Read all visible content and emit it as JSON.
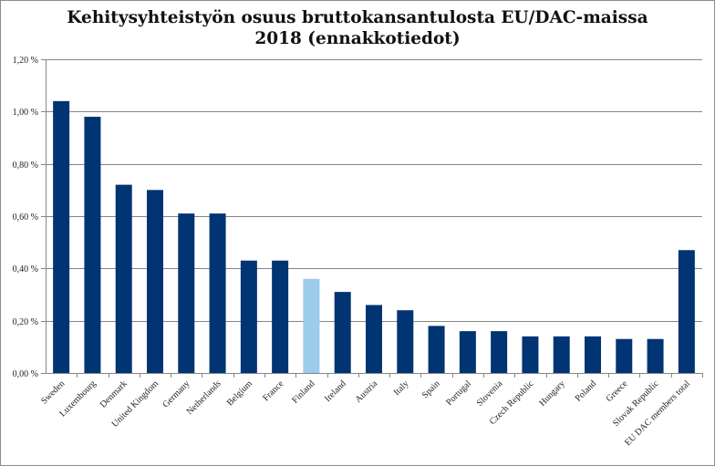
{
  "chart_data": {
    "type": "bar",
    "title_lines": [
      "Kehitysyhteistyön osuus bruttokansantulosta EU/DAC-maissa",
      "2018 (ennakkotiedot)"
    ],
    "categories": [
      "Sweden",
      "Luxembourg",
      "Denmark",
      "United Kingdom",
      "Germany",
      "Netherlands",
      "Belgium",
      "France",
      "Finland",
      "Ireland",
      "Austria",
      "Italy",
      "Spain",
      "Portugal",
      "Slovenia",
      "Czech Republic",
      "Hungary",
      "Poland",
      "Greece",
      "Slovak Republic",
      "EU DAC members total"
    ],
    "values": [
      1.04,
      0.98,
      0.72,
      0.7,
      0.61,
      0.61,
      0.43,
      0.43,
      0.36,
      0.31,
      0.26,
      0.24,
      0.18,
      0.16,
      0.16,
      0.14,
      0.14,
      0.14,
      0.13,
      0.13,
      0.47
    ],
    "highlight_category": "Finland",
    "y_ticks": [
      "0,00 %",
      "0,20 %",
      "0,40 %",
      "0,60 %",
      "0,80 %",
      "1,00 %",
      "1,20 %"
    ],
    "ylim": [
      0,
      1.2
    ],
    "grid": true,
    "xlabel": "",
    "ylabel": "",
    "colors": {
      "bar": "#003473",
      "highlight": "#9ccbeb",
      "grid": "#868686",
      "axis": "#868686"
    }
  }
}
